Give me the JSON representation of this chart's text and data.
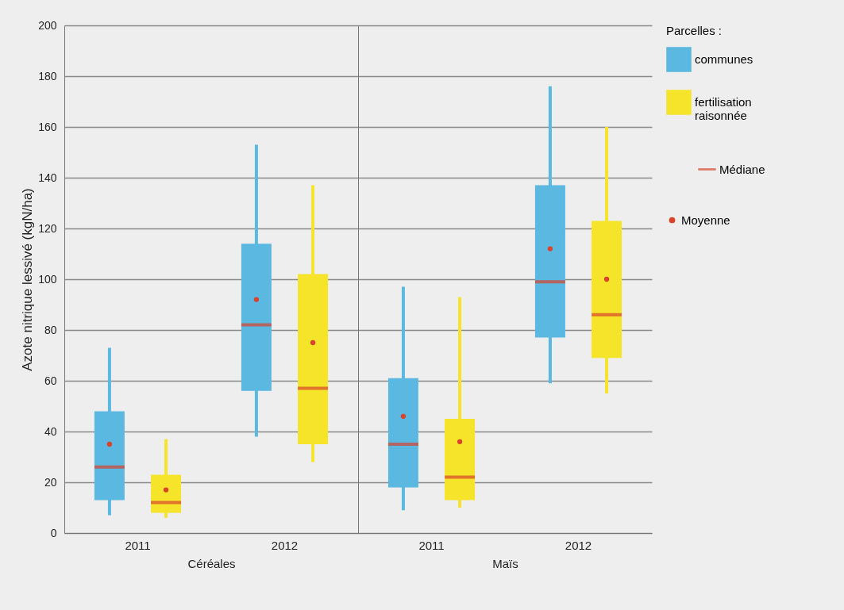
{
  "chart_data": [
    {
      "type": "box",
      "xlabel": "Céréales",
      "ylabel": "Azote nitrique lessivé (kgN/ha)",
      "categories": [
        "2011",
        "2012"
      ],
      "ylim": [
        0,
        200
      ],
      "yticks": [
        0,
        20,
        40,
        60,
        80,
        100,
        120,
        140,
        160,
        180,
        200
      ],
      "grid": "y",
      "legend": "right",
      "series": [
        {
          "name": "communes",
          "color": "#5bb8e0",
          "boxes": [
            {
              "low": 7,
              "q1": 13,
              "median": 26,
              "q3": 48,
              "high": 73,
              "mean": 35
            },
            {
              "low": 38,
              "q1": 56,
              "median": 82,
              "q3": 114,
              "high": 153,
              "mean": 92
            }
          ]
        },
        {
          "name": "fertilisation raisonnée",
          "color": "#f5e42a",
          "boxes": [
            {
              "low": 6,
              "q1": 8,
              "median": 12,
              "q3": 23,
              "high": 37,
              "mean": 17
            },
            {
              "low": 28,
              "q1": 35,
              "median": 57,
              "q3": 102,
              "high": 137,
              "mean": 75
            }
          ]
        }
      ]
    },
    {
      "type": "box",
      "xlabel": "Maïs",
      "categories": [
        "2011",
        "2012"
      ],
      "ylim": [
        0,
        200
      ],
      "yticks": [
        0,
        20,
        40,
        60,
        80,
        100,
        120,
        140,
        160,
        180,
        200
      ],
      "grid": "y",
      "tick_labels": "x",
      "legend": "right",
      "legend_title": "Parcelles :",
      "annotations": [
        "Médiane",
        "Moyenne"
      ],
      "series": [
        {
          "name": "communes",
          "color": "#5bb8e0",
          "boxes": [
            {
              "low": 9,
              "q1": 18,
              "median": 35,
              "q3": 61,
              "high": 97,
              "mean": 46
            },
            {
              "low": 59,
              "q1": 77,
              "median": 99,
              "q3": 137,
              "high": 176,
              "mean": 112
            }
          ]
        },
        {
          "name": "fertilisation raisonnée",
          "color": "#f5e42a",
          "boxes": [
            {
              "low": 10,
              "q1": 13,
              "median": 22,
              "q3": 45,
              "high": 93,
              "mean": 36
            },
            {
              "low": 55,
              "q1": 69,
              "median": 86,
              "q3": 123,
              "high": 160,
              "mean": 100
            }
          ]
        }
      ]
    }
  ]
}
